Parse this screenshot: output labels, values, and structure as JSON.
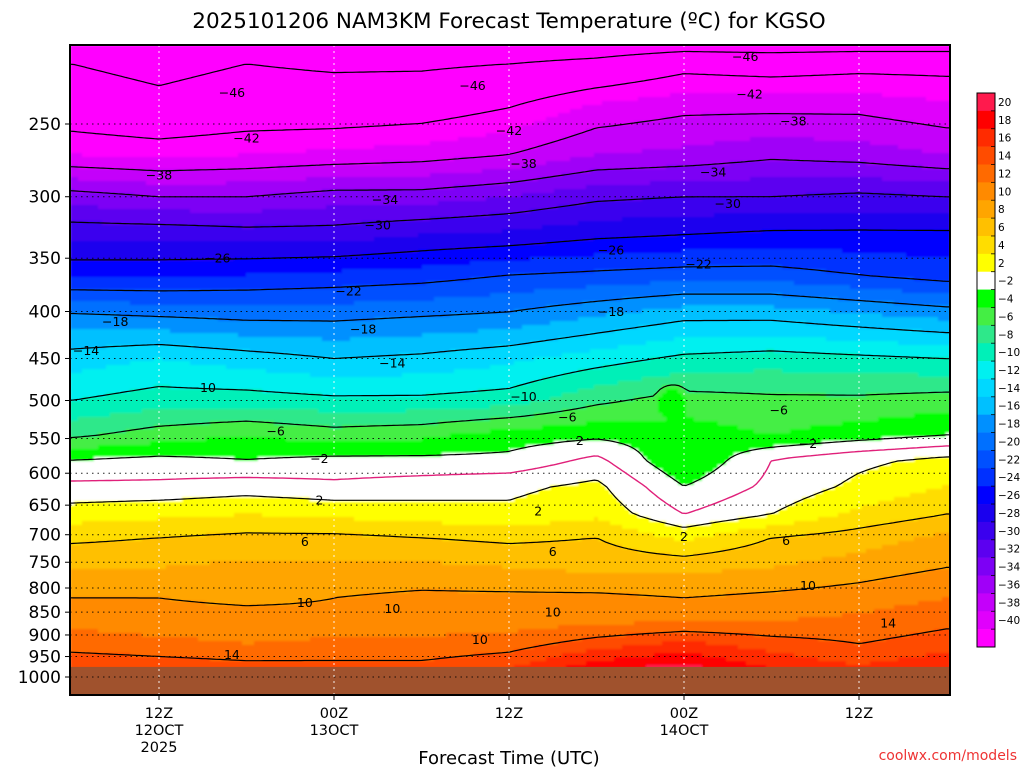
{
  "title": "2025101206 NAM3KM Forecast Temperature (ºC) for KGSO",
  "credit": "coolwx.com/models",
  "chart_data": {
    "type": "heatmap",
    "title": "2025101206 NAM3KM Forecast Temperature (ºC) for KGSO",
    "xlabel": "Forecast Time (UTC)",
    "ylabel": "",
    "x_unit": "forecast hour",
    "y_unit": "pressure (hPa)",
    "xlim": [
      0,
      60
    ],
    "ylim": [
      1040,
      200
    ],
    "x_ticks": [
      {
        "x": 6,
        "lines": [
          "12Z",
          "12OCT",
          "2025"
        ]
      },
      {
        "x": 18,
        "lines": [
          "00Z",
          "13OCT"
        ]
      },
      {
        "x": 30,
        "lines": [
          "12Z"
        ]
      },
      {
        "x": 42,
        "lines": [
          "00Z",
          "14OCT"
        ]
      },
      {
        "x": 54,
        "lines": [
          "12Z"
        ]
      }
    ],
    "y_ticks": [
      250,
      300,
      350,
      400,
      450,
      500,
      550,
      600,
      650,
      700,
      750,
      800,
      850,
      900,
      950,
      1000
    ],
    "grid": true,
    "surface_fill": {
      "from_hpa": 975,
      "color": "#a0522d"
    },
    "colorbar": {
      "ticks": [
        20,
        18,
        16,
        14,
        12,
        10,
        8,
        6,
        4,
        2,
        -2,
        -4,
        -6,
        -8,
        -10,
        -12,
        -14,
        -16,
        -18,
        -20,
        -22,
        -24,
        -26,
        -28,
        -30,
        -32,
        -34,
        -36,
        -38,
        -40
      ],
      "bands": [
        {
          "lo": 20,
          "hi": 22,
          "color": "#ff1a4d"
        },
        {
          "lo": 18,
          "hi": 20,
          "color": "#fe0000"
        },
        {
          "lo": 16,
          "hi": 18,
          "color": "#ff2b00"
        },
        {
          "lo": 14,
          "hi": 16,
          "color": "#ff4c00"
        },
        {
          "lo": 12,
          "hi": 14,
          "color": "#ff6a00"
        },
        {
          "lo": 10,
          "hi": 12,
          "color": "#ff8a00"
        },
        {
          "lo": 8,
          "hi": 10,
          "color": "#ffa500"
        },
        {
          "lo": 6,
          "hi": 8,
          "color": "#ffc000"
        },
        {
          "lo": 4,
          "hi": 6,
          "color": "#ffdd00"
        },
        {
          "lo": 2,
          "hi": 4,
          "color": "#ffff00"
        },
        {
          "lo": -2,
          "hi": 2,
          "color": "#ffffff"
        },
        {
          "lo": -4,
          "hi": -2,
          "color": "#00ff00"
        },
        {
          "lo": -6,
          "hi": -4,
          "color": "#44ee44"
        },
        {
          "lo": -8,
          "hi": -6,
          "color": "#2ee88a"
        },
        {
          "lo": -10,
          "hi": -8,
          "color": "#00f0b8"
        },
        {
          "lo": -12,
          "hi": -10,
          "color": "#00f0f0"
        },
        {
          "lo": -14,
          "hi": -12,
          "color": "#00d8ff"
        },
        {
          "lo": -16,
          "hi": -14,
          "color": "#00c0ff"
        },
        {
          "lo": -18,
          "hi": -16,
          "color": "#0090ff"
        },
        {
          "lo": -20,
          "hi": -18,
          "color": "#0070ff"
        },
        {
          "lo": -22,
          "hi": -20,
          "color": "#0050ff"
        },
        {
          "lo": -24,
          "hi": -22,
          "color": "#0030ff"
        },
        {
          "lo": -26,
          "hi": -24,
          "color": "#0000ff"
        },
        {
          "lo": -28,
          "hi": -26,
          "color": "#1a00ee"
        },
        {
          "lo": -30,
          "hi": -28,
          "color": "#3a00ee"
        },
        {
          "lo": -32,
          "hi": -30,
          "color": "#5c00f0"
        },
        {
          "lo": -34,
          "hi": -32,
          "color": "#7d00f5"
        },
        {
          "lo": -36,
          "hi": -34,
          "color": "#a000f8"
        },
        {
          "lo": -38,
          "hi": -36,
          "color": "#c400fa"
        },
        {
          "lo": -40,
          "hi": -38,
          "color": "#e000fc"
        },
        {
          "lo": -60,
          "hi": -40,
          "color": "#ff00ff"
        }
      ]
    },
    "anchors": [
      {
        "p": 200,
        "x": [
          0,
          10,
          20,
          30,
          40,
          50,
          60
        ],
        "t": [
          -50,
          -50,
          -50,
          -50,
          -50,
          -50,
          -50
        ]
      },
      {
        "p": 215,
        "x": [
          0,
          6,
          12,
          18,
          24,
          30,
          36,
          42,
          48,
          54,
          60
        ],
        "t": [
          -46,
          -47,
          -46,
          -46.5,
          -46.5,
          -46,
          -45,
          -43,
          -43.5,
          -43,
          -43
        ]
      },
      {
        "p": 240,
        "x": [
          0,
          6,
          12,
          18,
          24,
          30,
          36,
          42,
          48,
          54,
          60
        ],
        "t": [
          -44,
          -45,
          -44,
          -44,
          -43.5,
          -42,
          -39.5,
          -38.5,
          -38.5,
          -38.5,
          -39.5
        ]
      },
      {
        "p": 270,
        "x": [
          0,
          6,
          12,
          18,
          24,
          30,
          36,
          42,
          48,
          54,
          60
        ],
        "t": [
          -40,
          -40.5,
          -40,
          -39.5,
          -39,
          -38,
          -36,
          -35.5,
          -34.5,
          -35,
          -36
        ]
      },
      {
        "p": 300,
        "x": [
          0,
          6,
          12,
          18,
          24,
          30,
          36,
          42,
          48,
          54,
          60
        ],
        "t": [
          -33,
          -34,
          -34,
          -33,
          -33,
          -32,
          -30.5,
          -30,
          -30,
          -29.5,
          -30
        ]
      },
      {
        "p": 330,
        "x": [
          0,
          6,
          12,
          18,
          24,
          30,
          36,
          42,
          48,
          54,
          60
        ],
        "t": [
          -28.5,
          -28.5,
          -29,
          -29,
          -28,
          -27.5,
          -26.5,
          -26,
          -25.5,
          -25.5,
          -25.5
        ]
      },
      {
        "p": 365,
        "x": [
          0,
          6,
          12,
          18,
          24,
          30,
          36,
          42,
          48,
          54,
          60
        ],
        "t": [
          -24.5,
          -24.5,
          -24,
          -23.5,
          -23,
          -22,
          -21.5,
          -21,
          -21,
          -22,
          -23
        ]
      },
      {
        "p": 405,
        "x": [
          0,
          6,
          12,
          18,
          24,
          30,
          36,
          42,
          48,
          54,
          60
        ],
        "t": [
          -17.5,
          -18,
          -18.5,
          -18.5,
          -18,
          -17.5,
          -16,
          -14.5,
          -14.5,
          -15.5,
          -16.5
        ]
      },
      {
        "p": 450,
        "x": [
          0,
          6,
          12,
          18,
          24,
          30,
          36,
          42,
          48,
          54,
          60
        ],
        "t": [
          -13,
          -12,
          -13,
          -14,
          -13.5,
          -12.5,
          -11,
          -9.5,
          -9,
          -9.5,
          -10
        ]
      },
      {
        "p": 500,
        "x": [
          0,
          6,
          12,
          18,
          24,
          30,
          36,
          42,
          48,
          54,
          60
        ],
        "t": [
          -10,
          -9,
          -9,
          -9.5,
          -9.5,
          -9,
          -6.5,
          -5,
          -5.5,
          -5.5,
          -5
        ]
      },
      {
        "p": 545,
        "x": [
          0,
          6,
          12,
          18,
          24,
          30,
          36,
          42,
          48,
          54,
          60
        ],
        "t": [
          -6.5,
          -5,
          -4,
          -5,
          -4.5,
          -3,
          -2.5,
          -3,
          -4,
          -3,
          -2
        ]
      },
      {
        "p": 580,
        "x": [
          0,
          6,
          12,
          18,
          24,
          30,
          36,
          42,
          48,
          54,
          60
        ],
        "t": [
          -2,
          -1.5,
          -2,
          -1.5,
          -1.5,
          -1.5,
          0.5,
          -4,
          0,
          1.5,
          2.5
        ]
      },
      {
        "p": 620,
        "x": [
          0,
          6,
          12,
          18,
          24,
          30,
          36,
          42,
          48,
          54,
          60
        ],
        "t": [
          0.5,
          0.5,
          1,
          0.5,
          1,
          1.5,
          2.5,
          -2,
          0.5,
          2.5,
          4
        ]
      },
      {
        "p": 665,
        "x": [
          0,
          6,
          12,
          18,
          24,
          30,
          36,
          42,
          48,
          54,
          60
        ],
        "t": [
          3,
          3.5,
          4,
          3.5,
          3,
          2.5,
          3.5,
          0,
          2,
          4.5,
          6
        ]
      },
      {
        "p": 705,
        "x": [
          0,
          6,
          12,
          18,
          24,
          30,
          36,
          42,
          48,
          54,
          60
        ],
        "t": [
          5.5,
          6,
          6.5,
          6.5,
          6,
          5.5,
          6,
          3.5,
          6,
          7,
          8.5
        ]
      },
      {
        "p": 760,
        "x": [
          0,
          6,
          12,
          18,
          24,
          30,
          36,
          42,
          48,
          54,
          60
        ],
        "t": [
          8,
          8,
          8.5,
          8.5,
          8.5,
          8,
          7.5,
          7.5,
          8,
          9,
          10
        ]
      },
      {
        "p": 820,
        "x": [
          0,
          6,
          12,
          18,
          24,
          30,
          36,
          42,
          48,
          54,
          60
        ],
        "t": [
          10,
          10,
          9.5,
          10,
          10.5,
          10.5,
          10.5,
          10,
          10.5,
          11,
          12
        ]
      },
      {
        "p": 870,
        "x": [
          0,
          6,
          12,
          18,
          24,
          30,
          36,
          42,
          48,
          54,
          60
        ],
        "t": [
          11.5,
          11,
          11,
          10.5,
          11,
          11,
          11.5,
          12,
          12,
          12.5,
          13.5
        ]
      },
      {
        "p": 920,
        "x": [
          0,
          6,
          12,
          18,
          24,
          30,
          36,
          42,
          48,
          54,
          60
        ],
        "t": [
          13,
          12.5,
          12,
          12.5,
          12.5,
          13,
          15,
          16.5,
          15,
          14,
          15
        ]
      },
      {
        "p": 960,
        "x": [
          0,
          6,
          12,
          18,
          24,
          30,
          36,
          42,
          48,
          54,
          60
        ],
        "t": [
          15,
          14.5,
          14,
          14,
          14,
          15,
          18,
          19.5,
          17,
          15.5,
          17
        ]
      },
      {
        "p": 980,
        "x": [
          0,
          6,
          12,
          18,
          24,
          30,
          36,
          42,
          48,
          54,
          60
        ],
        "t": [
          16,
          15.5,
          15,
          15,
          15,
          16,
          19.5,
          21,
          18,
          16.5,
          18
        ]
      }
    ],
    "features": [
      {
        "kind": "warm_pocket",
        "x": 41.2,
        "p": 502,
        "rx": 1.3,
        "ry": 24,
        "value": -2
      },
      {
        "kind": "warm_pocket",
        "x": 40.5,
        "p": 792,
        "rx": 0.5,
        "ry": 6,
        "value": 10
      }
    ],
    "contours": {
      "values": [
        -46,
        -42,
        -38,
        -34,
        -30,
        -26,
        -22,
        -18,
        -14,
        -10,
        -6,
        -2,
        2,
        6,
        10,
        14
      ],
      "zero_isotherm": 0,
      "dashed_below": 0
    },
    "contour_labels": [
      {
        "x": 46.2,
        "p": 211,
        "text": "-46"
      },
      {
        "x": 11.0,
        "p": 231,
        "text": "-46"
      },
      {
        "x": 27.5,
        "p": 227,
        "text": "-46"
      },
      {
        "x": 46.5,
        "p": 232,
        "text": "-42"
      },
      {
        "x": 12.0,
        "p": 259,
        "text": "-42"
      },
      {
        "x": 30.0,
        "p": 254,
        "text": "-42"
      },
      {
        "x": 49.5,
        "p": 248,
        "text": "-38"
      },
      {
        "x": 6.0,
        "p": 284,
        "text": "-38"
      },
      {
        "x": 31.0,
        "p": 276,
        "text": "-38"
      },
      {
        "x": 44.0,
        "p": 282,
        "text": "-34"
      },
      {
        "x": 21.5,
        "p": 302,
        "text": "-34"
      },
      {
        "x": 45.0,
        "p": 305,
        "text": "-30"
      },
      {
        "x": 21.0,
        "p": 322,
        "text": "-30"
      },
      {
        "x": 37.0,
        "p": 343,
        "text": "-26"
      },
      {
        "x": 10.0,
        "p": 350,
        "text": "-26"
      },
      {
        "x": 43.0,
        "p": 355,
        "text": "-22"
      },
      {
        "x": 19.0,
        "p": 380,
        "text": "-22"
      },
      {
        "x": 3.0,
        "p": 410,
        "text": "-18"
      },
      {
        "x": 20.0,
        "p": 418,
        "text": "-18"
      },
      {
        "x": 37.0,
        "p": 400,
        "text": "-18"
      },
      {
        "x": 1.0,
        "p": 441,
        "text": "-14"
      },
      {
        "x": 22.0,
        "p": 455,
        "text": "-14"
      },
      {
        "x": 9.0,
        "p": 484,
        "text": "-10"
      },
      {
        "x": 31.0,
        "p": 495,
        "text": "-10"
      },
      {
        "x": 48.5,
        "p": 512,
        "text": "-6"
      },
      {
        "x": 14.0,
        "p": 540,
        "text": "-6"
      },
      {
        "x": 34.0,
        "p": 521,
        "text": "-6"
      },
      {
        "x": 17.0,
        "p": 578,
        "text": "-2"
      },
      {
        "x": 34.5,
        "p": 553,
        "text": "-2"
      },
      {
        "x": 50.5,
        "p": 557,
        "text": "-2"
      },
      {
        "x": 17.0,
        "p": 642,
        "text": "2"
      },
      {
        "x": 32.0,
        "p": 660,
        "text": "2"
      },
      {
        "x": 42.0,
        "p": 703,
        "text": "2"
      },
      {
        "x": 16.0,
        "p": 712,
        "text": "6"
      },
      {
        "x": 33.0,
        "p": 730,
        "text": "6"
      },
      {
        "x": 49.0,
        "p": 710,
        "text": "6"
      },
      {
        "x": 16.0,
        "p": 830,
        "text": "10"
      },
      {
        "x": 22.0,
        "p": 842,
        "text": "10"
      },
      {
        "x": 33.0,
        "p": 850,
        "text": "10"
      },
      {
        "x": 28.0,
        "p": 910,
        "text": "10"
      },
      {
        "x": 50.5,
        "p": 795,
        "text": "10"
      },
      {
        "x": 11.0,
        "p": 945,
        "text": "14"
      },
      {
        "x": 56.0,
        "p": 873,
        "text": "14"
      }
    ]
  }
}
